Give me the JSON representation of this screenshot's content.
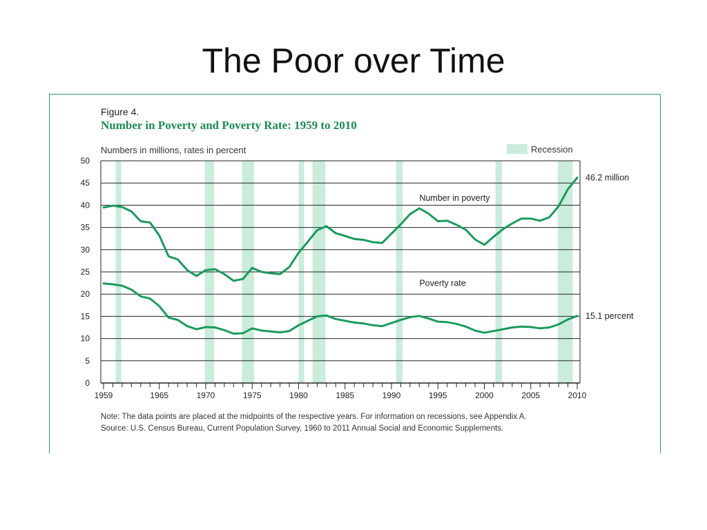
{
  "slide": {
    "title": "The Poor over Time"
  },
  "figure": {
    "label": "Figure 4.",
    "title": "Number in Poverty and Poverty Rate: 1959 to 2010",
    "units": "Numbers in millions, rates in percent",
    "legend_recession": "Recession",
    "note": "Note: The data points are placed at the midpoints of the respective years. For information on recessions, see Appendix A.",
    "source": "Source: U.S. Census Bureau, Current Population Survey, 1960 to 2011 Annual Social and Economic Supplements."
  },
  "chart_data": {
    "type": "line",
    "title": "Number in Poverty and Poverty Rate: 1959 to 2010",
    "ylabel": "Numbers in millions, rates in percent",
    "ylim": [
      0,
      50
    ],
    "yticks": [
      0,
      5,
      10,
      15,
      20,
      25,
      30,
      35,
      40,
      45,
      50
    ],
    "xlim": [
      1959,
      2010
    ],
    "xtick_labels": [
      1959,
      1965,
      1970,
      1975,
      1980,
      1985,
      1990,
      1995,
      2000,
      2005,
      2010
    ],
    "grid": true,
    "colors": {
      "line": "#1a9a5c",
      "recession": "#c9ecdb",
      "grid": "#222222"
    },
    "x": [
      1959,
      1960,
      1961,
      1962,
      1963,
      1964,
      1965,
      1966,
      1967,
      1968,
      1969,
      1970,
      1971,
      1972,
      1973,
      1974,
      1975,
      1976,
      1977,
      1978,
      1979,
      1980,
      1981,
      1982,
      1983,
      1984,
      1985,
      1986,
      1987,
      1988,
      1989,
      1990,
      1991,
      1992,
      1993,
      1994,
      1995,
      1996,
      1997,
      1998,
      1999,
      2000,
      2001,
      2002,
      2003,
      2004,
      2005,
      2006,
      2007,
      2008,
      2009,
      2010
    ],
    "series": [
      {
        "name": "Number in poverty",
        "end_label": "46.2 million",
        "values": [
          39.5,
          39.9,
          39.6,
          38.6,
          36.4,
          36.1,
          33.2,
          28.5,
          27.8,
          25.4,
          24.1,
          25.4,
          25.6,
          24.5,
          23.0,
          23.4,
          25.9,
          25.0,
          24.7,
          24.5,
          26.1,
          29.3,
          31.8,
          34.4,
          35.3,
          33.7,
          33.1,
          32.4,
          32.2,
          31.7,
          31.5,
          33.6,
          35.7,
          38.0,
          39.3,
          38.1,
          36.4,
          36.5,
          35.6,
          34.5,
          32.3,
          31.1,
          32.9,
          34.6,
          35.9,
          37.0,
          37.0,
          36.5,
          37.3,
          39.8,
          43.6,
          46.2
        ]
      },
      {
        "name": "Poverty rate",
        "end_label": "15.1 percent",
        "values": [
          22.4,
          22.2,
          21.9,
          21.0,
          19.5,
          19.0,
          17.3,
          14.7,
          14.2,
          12.8,
          12.1,
          12.6,
          12.5,
          11.9,
          11.1,
          11.2,
          12.3,
          11.8,
          11.6,
          11.4,
          11.7,
          13.0,
          14.0,
          15.0,
          15.2,
          14.4,
          14.0,
          13.6,
          13.4,
          13.0,
          12.8,
          13.5,
          14.2,
          14.8,
          15.1,
          14.5,
          13.8,
          13.7,
          13.3,
          12.7,
          11.8,
          11.3,
          11.7,
          12.1,
          12.5,
          12.7,
          12.6,
          12.3,
          12.5,
          13.2,
          14.3,
          15.1
        ]
      }
    ],
    "recessions": [
      [
        1960.3,
        1960.9
      ],
      [
        1969.9,
        1970.9
      ],
      [
        1973.9,
        1975.2
      ],
      [
        1980.0,
        1980.6
      ],
      [
        1981.5,
        1982.9
      ],
      [
        1990.5,
        1991.2
      ],
      [
        2001.2,
        2001.9
      ],
      [
        2007.9,
        2009.5
      ]
    ]
  }
}
